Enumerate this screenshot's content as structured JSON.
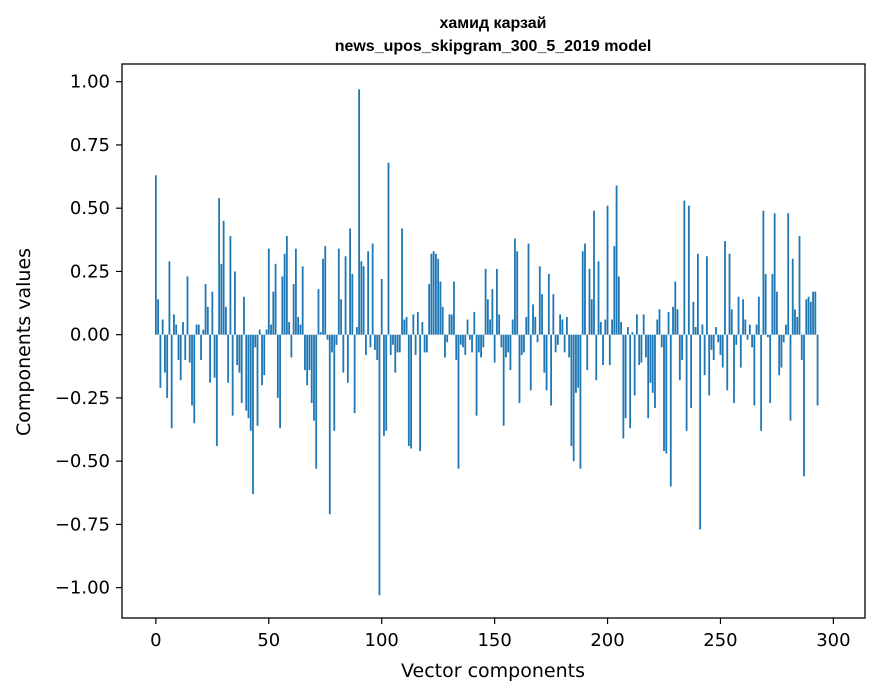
{
  "chart_data": {
    "type": "bar",
    "title": "хамид карзай",
    "subtitle": "news_upos_skipgram_300_5_2019 model",
    "xlabel": "Vector components",
    "ylabel": "Components values",
    "xlim": [
      -15,
      314
    ],
    "ylim": [
      -1.12,
      1.07
    ],
    "xticks": [
      0,
      50,
      100,
      150,
      200,
      250,
      300
    ],
    "xtick_labels": [
      "0",
      "50",
      "100",
      "150",
      "200",
      "250",
      "300"
    ],
    "yticks": [
      1.0,
      0.75,
      0.5,
      0.25,
      0.0,
      -0.25,
      -0.5,
      -0.75,
      -1.0
    ],
    "ytick_labels": [
      "1.00",
      "0.75",
      "0.50",
      "0.25",
      "0.00",
      "−0.25",
      "−0.50",
      "−0.75",
      "−1.00"
    ],
    "grid": false,
    "bar_color": "#1f77b4",
    "values": [
      0.63,
      0.14,
      -0.21,
      0.06,
      -0.15,
      -0.25,
      0.29,
      -0.37,
      0.08,
      0.04,
      -0.1,
      -0.18,
      0.05,
      -0.1,
      0.23,
      -0.11,
      -0.28,
      -0.35,
      0.04,
      0.04,
      -0.1,
      0.02,
      0.2,
      0.11,
      -0.19,
      0.17,
      -0.17,
      -0.44,
      0.54,
      0.28,
      0.45,
      0.11,
      -0.19,
      0.39,
      -0.32,
      0.25,
      -0.12,
      -0.15,
      -0.27,
      0.15,
      -0.3,
      -0.33,
      -0.38,
      -0.63,
      -0.05,
      -0.36,
      0.02,
      -0.2,
      -0.16,
      0.02,
      0.34,
      0.04,
      0.17,
      0.28,
      -0.25,
      -0.37,
      0.23,
      0.32,
      0.39,
      0.05,
      -0.09,
      0.2,
      0.34,
      0.07,
      0.04,
      0.27,
      -0.14,
      -0.2,
      -0.14,
      -0.27,
      -0.34,
      -0.53,
      0.18,
      0.01,
      0.3,
      0.35,
      -0.02,
      -0.71,
      -0.07,
      -0.38,
      -0.04,
      0.34,
      0.14,
      -0.15,
      0.31,
      -0.19,
      0.42,
      0.24,
      -0.31,
      0.03,
      0.97,
      0.29,
      0.27,
      -0.08,
      0.33,
      -0.05,
      0.36,
      -0.06,
      -0.1,
      -1.03,
      0.22,
      -0.4,
      -0.38,
      0.68,
      -0.08,
      -0.04,
      -0.15,
      -0.07,
      -0.07,
      0.42,
      0.06,
      0.07,
      -0.44,
      -0.45,
      0.08,
      -0.08,
      0.09,
      -0.46,
      0.05,
      -0.07,
      -0.07,
      0.2,
      0.32,
      0.33,
      0.32,
      0.3,
      0.21,
      0.11,
      -0.09,
      -0.03,
      0.08,
      0.08,
      0.21,
      -0.1,
      -0.53,
      -0.04,
      -0.05,
      -0.08,
      0.06,
      -0.02,
      -0.07,
      0.09,
      -0.32,
      -0.07,
      -0.09,
      -0.05,
      0.26,
      0.14,
      0.06,
      0.18,
      -0.11,
      0.26,
      0.08,
      -0.05,
      -0.36,
      -0.09,
      -0.07,
      -0.14,
      0.06,
      0.38,
      0.33,
      -0.27,
      -0.08,
      -0.07,
      0.07,
      0.36,
      -0.22,
      0.12,
      0.07,
      -0.03,
      0.27,
      0.16,
      -0.15,
      -0.22,
      0.24,
      -0.28,
      0.16,
      -0.07,
      -0.04,
      0.08,
      0.06,
      -0.07,
      0.07,
      -0.09,
      -0.44,
      -0.5,
      -0.23,
      -0.21,
      -0.53,
      0.33,
      0.36,
      -0.14,
      0.26,
      0.14,
      0.49,
      -0.18,
      0.29,
      0.05,
      -0.12,
      0.06,
      0.51,
      -0.12,
      0.06,
      0.35,
      0.59,
      0.23,
      0.05,
      -0.41,
      -0.33,
      0.03,
      -0.37,
      0.01,
      -0.24,
      0.08,
      -0.12,
      -0.11,
      0.08,
      -0.09,
      -0.33,
      -0.19,
      -0.23,
      -0.29,
      0.06,
      0.1,
      -0.05,
      -0.46,
      -0.47,
      0.09,
      -0.6,
      0.11,
      0.21,
      0.1,
      -0.18,
      -0.1,
      0.53,
      -0.38,
      0.51,
      -0.29,
      0.13,
      0.03,
      0.32,
      -0.77,
      0.04,
      -0.16,
      0.31,
      -0.24,
      -0.06,
      -0.1,
      0.03,
      -0.03,
      -0.08,
      -0.13,
      0.37,
      -0.22,
      0.32,
      0.1,
      -0.27,
      -0.04,
      0.15,
      -0.13,
      0.14,
      0.06,
      -0.02,
      0.04,
      -0.05,
      -0.28,
      0.04,
      0.15,
      -0.38,
      0.49,
      0.24,
      -0.01,
      -0.27,
      0.24,
      0.48,
      0.17,
      -0.16,
      -0.13,
      -0.03,
      0.04,
      0.48,
      -0.34,
      0.3,
      0.1,
      0.07,
      0.39,
      -0.1,
      -0.56,
      0.14,
      0.15,
      0.13,
      0.17,
      0.17,
      -0.28
    ]
  }
}
